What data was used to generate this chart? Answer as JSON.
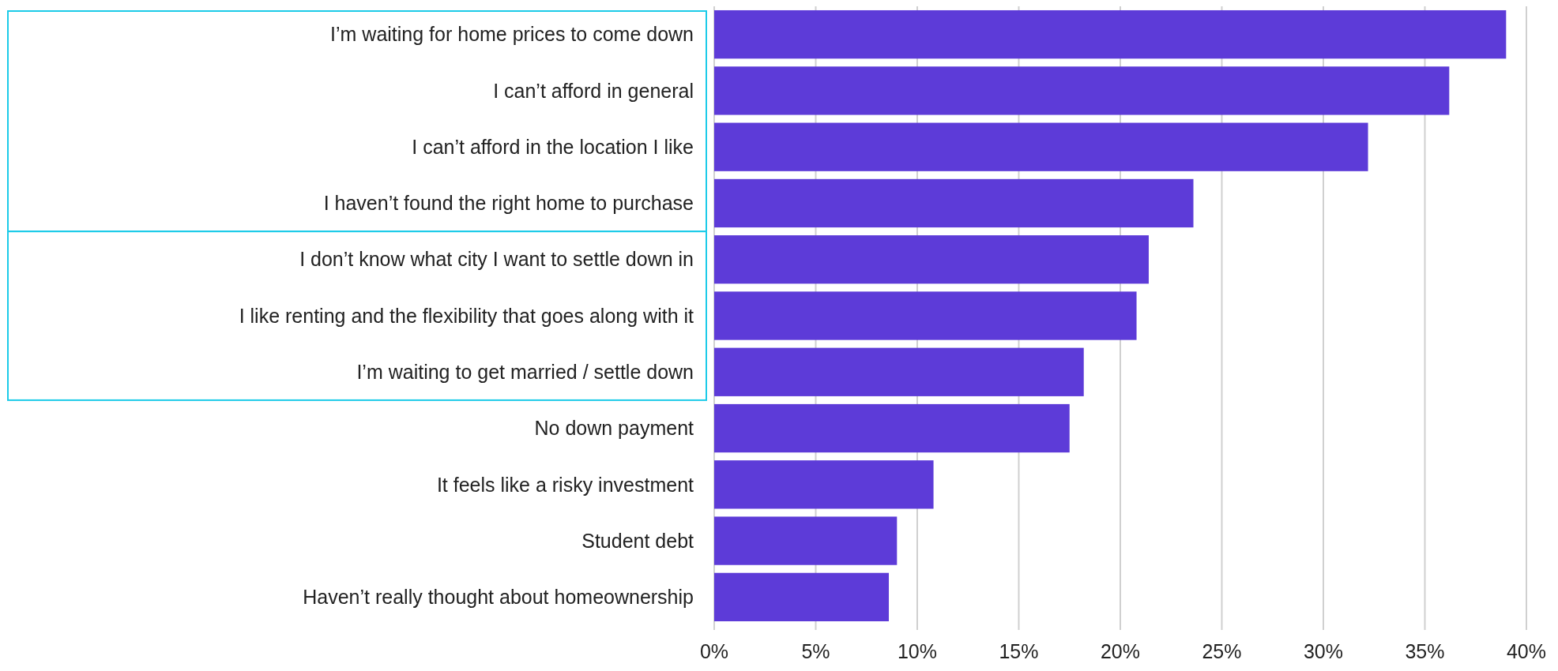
{
  "chart_data": {
    "type": "bar",
    "orientation": "horizontal",
    "categories": [
      "I’m waiting for home prices to come down",
      "I can’t afford in general",
      "I can’t afford in the location I like",
      "I haven’t found the right home to purchase",
      "I don’t know what city I want to settle down in",
      "I like renting and the flexibility that goes along with it",
      "I’m waiting to get married / settle down",
      "No down payment",
      "It feels like a risky investment",
      "Student debt",
      "Haven’t really thought about homeownership"
    ],
    "values": [
      39.0,
      36.2,
      32.2,
      23.6,
      21.4,
      20.8,
      18.2,
      17.5,
      10.8,
      9.0,
      8.6
    ],
    "color": "#5d3bd8",
    "xlim": [
      0,
      40
    ],
    "xticks": [
      {
        "value": 0,
        "label": "0%"
      },
      {
        "value": 5,
        "label": "5%"
      },
      {
        "value": 10,
        "label": "10%"
      },
      {
        "value": 15,
        "label": "15%"
      },
      {
        "value": 20,
        "label": "20%"
      },
      {
        "value": 25,
        "label": "25%"
      },
      {
        "value": 30,
        "label": "30%"
      },
      {
        "value": 35,
        "label": "35%"
      },
      {
        "value": 40,
        "label": "40%"
      }
    ],
    "grid": "x"
  }
}
